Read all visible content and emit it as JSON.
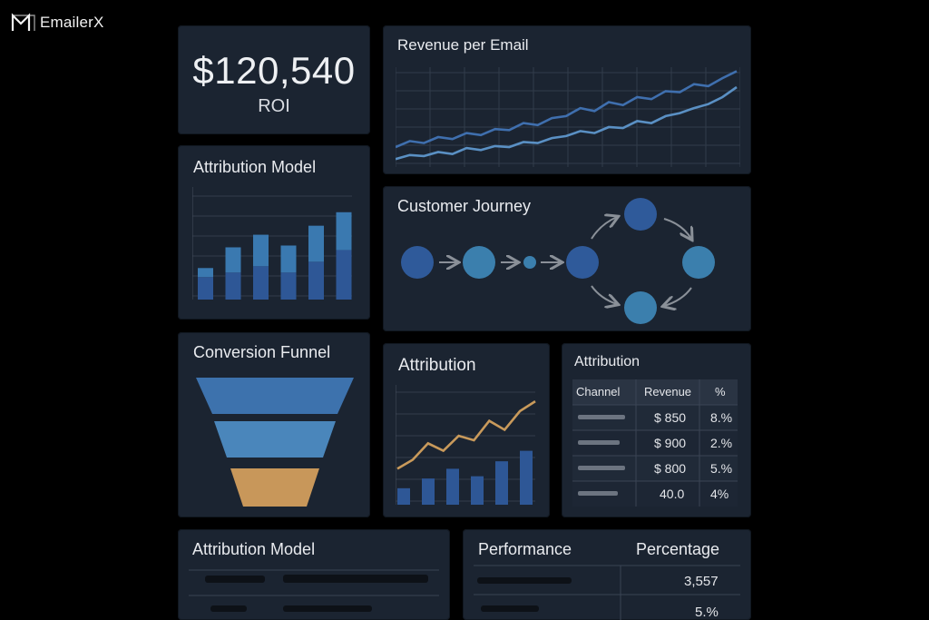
{
  "brand": {
    "name": "EmailerX",
    "icon": "m-logo-icon"
  },
  "roi": {
    "value": "$120,540",
    "label": "ROI"
  },
  "revenue_per_email": {
    "title": "Revenue per Email"
  },
  "attribution_model_bars": {
    "title": "Attribution Model"
  },
  "customer_journey": {
    "title": "Customer Journey"
  },
  "conversion_funnel": {
    "title": "Conversion Funnel"
  },
  "attribution_chart": {
    "title": "Attribution"
  },
  "attribution_table": {
    "title": "Attribution",
    "headers": [
      "Channel",
      "Revenue",
      "%"
    ],
    "rows": [
      {
        "revenue": "$ 850",
        "pct": "8.%"
      },
      {
        "revenue": "$ 900",
        "pct": "2.%"
      },
      {
        "revenue": "$ 800",
        "pct": "5.%"
      },
      {
        "revenue": "40.0",
        "pct": "4%"
      }
    ]
  },
  "attribution_model_list": {
    "title": "Attribution Model"
  },
  "performance": {
    "title": "Performance",
    "percentage_label": "Percentage",
    "rows": [
      "3,557",
      "5.%"
    ]
  },
  "colors": {
    "background": "#000000",
    "card": "#1b2431",
    "line_blue": "#3f6fae",
    "line_light_blue": "#5a90c4",
    "bar_dark": "#2e5796",
    "bar_light": "#3a79b0",
    "funnel_top": "#3d72ad",
    "funnel_mid": "#4a86bb",
    "funnel_bottom": "#c8975a",
    "gold_line": "#c99a5b"
  },
  "chart_data": [
    {
      "type": "line",
      "chart": "revenue_per_email",
      "series": [
        {
          "values": [
            2,
            2.6,
            2.4,
            3.0,
            2.8,
            3.4,
            3.2,
            3.8,
            3.7,
            4.4,
            4.2,
            4.9,
            5.1,
            5.9,
            5.6,
            6.5,
            6.2,
            7.0,
            6.8,
            7.6,
            7.5,
            8.3,
            8.1,
            8.9,
            9.6
          ]
        },
        {
          "values": [
            0.8,
            1.2,
            1.1,
            1.5,
            1.3,
            1.9,
            1.7,
            2.1,
            2.0,
            2.5,
            2.4,
            2.9,
            3.1,
            3.6,
            3.4,
            4.0,
            3.9,
            4.6,
            4.4,
            5.1,
            5.4,
            5.9,
            6.3,
            7.0,
            8.0
          ]
        }
      ],
      "ylim": [
        0,
        10
      ]
    },
    {
      "type": "bar",
      "chart": "attribution_model",
      "stacked": true,
      "series": [
        {
          "values": [
            25,
            30,
            37,
            30,
            42,
            55
          ]
        },
        {
          "values": [
            10,
            28,
            35,
            30,
            40,
            42
          ]
        }
      ],
      "ylim": [
        0,
        125
      ]
    },
    {
      "type": "bar",
      "chart": "attribution",
      "values": [
        22,
        35,
        48,
        38,
        58,
        72
      ],
      "line": [
        48,
        60,
        82,
        72,
        92,
        86,
        112,
        100,
        125,
        138
      ],
      "ylim": [
        0,
        160
      ]
    }
  ]
}
